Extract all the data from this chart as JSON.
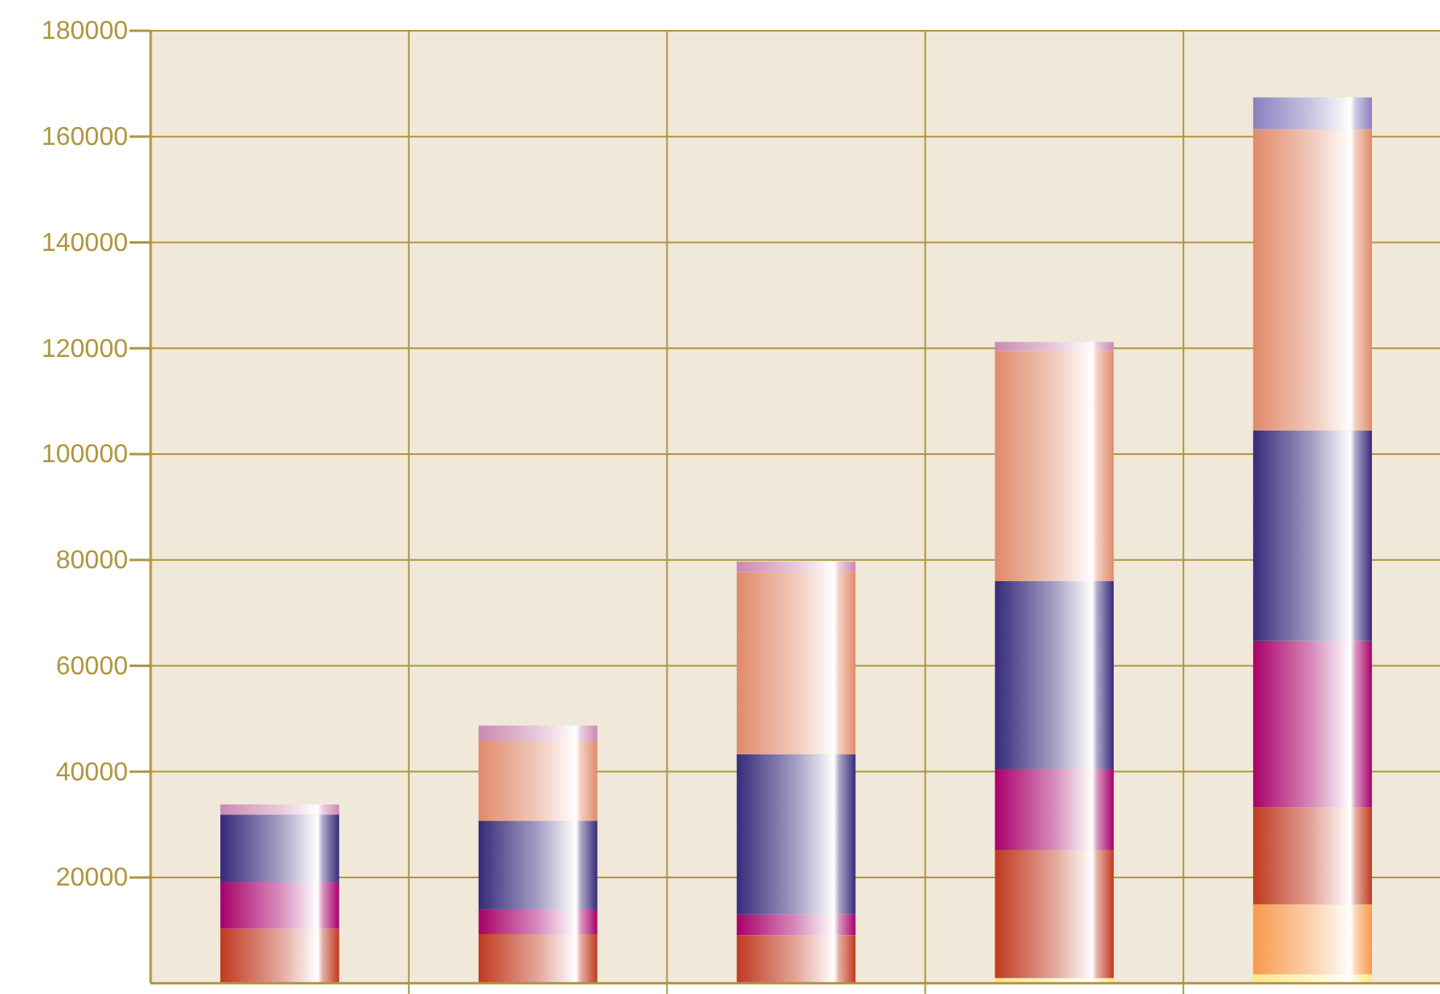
{
  "chart_data": {
    "type": "bar",
    "stacked": true,
    "categories": [
      null,
      null,
      null,
      null,
      null
    ],
    "series": [
      {
        "color": "#fde68a",
        "values": [
          0,
          0,
          0,
          1000,
          1700
        ]
      },
      {
        "color": "#f79a4a",
        "values": [
          0,
          0,
          0,
          0,
          13200
        ]
      },
      {
        "color": "#c0391f",
        "values": [
          10300,
          9300,
          9100,
          24200,
          18400
        ]
      },
      {
        "color": "#a8006a",
        "values": [
          8800,
          4600,
          3900,
          15300,
          31400
        ]
      },
      {
        "color": "#362a7a",
        "values": [
          12800,
          16800,
          30300,
          35500,
          39800
        ]
      },
      {
        "color": "#e08a6a",
        "values": [
          0,
          15000,
          34400,
          43500,
          56900
        ]
      },
      {
        "color": "#cc88b0",
        "values": [
          1900,
          3000,
          2000,
          1700,
          0
        ]
      },
      {
        "color": "#8a80c0",
        "values": [
          0,
          0,
          0,
          0,
          6000
        ]
      }
    ],
    "ylim": [
      0,
      180000
    ],
    "yticks": [
      20000,
      40000,
      60000,
      80000,
      100000,
      120000,
      140000,
      160000,
      180000
    ],
    "grid": true
  }
}
